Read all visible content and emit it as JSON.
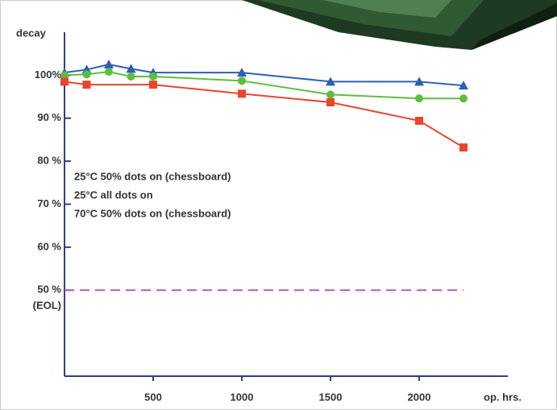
{
  "chart_data": {
    "type": "line",
    "y_label": "decay",
    "x_label": "op. hrs.",
    "xlim": [
      0,
      2500
    ],
    "ylim": [
      30,
      110
    ],
    "xticks": [
      500,
      1000,
      1500,
      2000
    ],
    "yticks": [
      {
        "value": 50,
        "label": "50 %"
      },
      {
        "value": 60,
        "label": "60 %"
      },
      {
        "value": 70,
        "label": "70 %"
      },
      {
        "value": 80,
        "label": "80 %"
      },
      {
        "value": 90,
        "label": "90 %"
      },
      {
        "value": 100,
        "label": "100%"
      }
    ],
    "legend": "center left",
    "threshold": {
      "value": 50,
      "label": "(EOL)",
      "color": "#b25cb4"
    },
    "series": [
      {
        "name": "25°C 50% dots on (chessboard)",
        "color": "#2b5fb4",
        "marker": "triangle",
        "x": [
          0,
          125,
          250,
          375,
          500,
          1000,
          1500,
          2000,
          2250
        ],
        "values": [
          100.6,
          101.3,
          102.5,
          101.5,
          100.6,
          100.6,
          98.5,
          98.5,
          97.6
        ]
      },
      {
        "name": "25°C all dots on",
        "color": "#5cbf3c",
        "marker": "circle",
        "x": [
          0,
          125,
          250,
          375,
          500,
          1000,
          1500,
          2000,
          2250
        ],
        "values": [
          100,
          100.2,
          100.8,
          99.7,
          99.7,
          98.7,
          95.5,
          94.6,
          94.6
        ]
      },
      {
        "name": "70°C 50% dots on (chessboard)",
        "color": "#e8452c",
        "marker": "square",
        "x": [
          0,
          125,
          500,
          1000,
          1500,
          2000,
          2250
        ],
        "values": [
          98.5,
          97.8,
          97.8,
          95.7,
          93.7,
          89.4,
          83.2
        ]
      }
    ]
  }
}
